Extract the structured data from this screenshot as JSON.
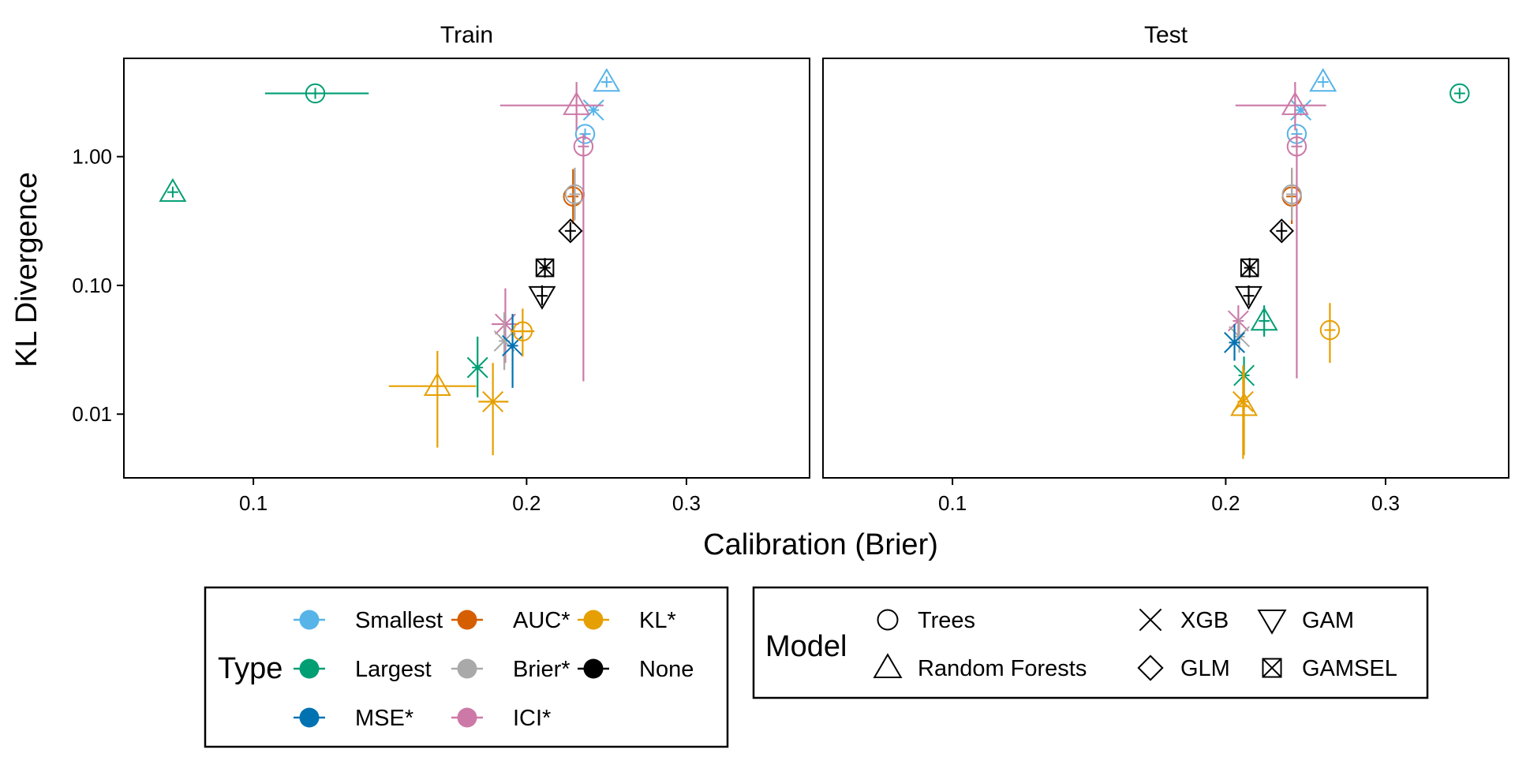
{
  "colors": {
    "Smallest": "#56B4E9",
    "Largest": "#009E73",
    "MSE*": "#0072B2",
    "AUC*": "#D55E00",
    "Brier*": "#A9A9A9",
    "ICI*": "#CC79A7",
    "KL*": "#E69F00",
    "None": "#000000"
  },
  "chart_data": {
    "type": "scatter",
    "xlabel": "Calibration (Brier)",
    "ylabel": "KL Divergence",
    "x_scale": "log",
    "y_scale": "log",
    "xlim": [
      0.072,
      0.41
    ],
    "ylim": [
      0.0032,
      5.8
    ],
    "x_ticks": [
      {
        "value": 0.1,
        "label": "0.1"
      },
      {
        "value": 0.2,
        "label": "0.2"
      },
      {
        "value": 0.3,
        "label": "0.3"
      }
    ],
    "y_ticks": [
      {
        "value": 0.01,
        "label": "0.01"
      },
      {
        "value": 0.1,
        "label": "0.10"
      },
      {
        "value": 1.0,
        "label": "1.00"
      }
    ],
    "grid": false,
    "legend_position": "bottom",
    "panels": [
      {
        "name": "Train",
        "points": [
          {
            "type": "Smallest",
            "model": "Random Forests",
            "x": 0.245,
            "y": 3.8
          },
          {
            "type": "Smallest",
            "model": "XGB",
            "x": 0.237,
            "y": 2.3
          },
          {
            "type": "Smallest",
            "model": "Trees",
            "x": 0.232,
            "y": 1.5
          },
          {
            "type": "Largest",
            "model": "Trees",
            "x": 0.117,
            "y": 3.1,
            "xerr": [
              0.103,
              0.134
            ]
          },
          {
            "type": "Largest",
            "model": "Random Forests",
            "x": 0.0815,
            "y": 0.53
          },
          {
            "type": "Largest",
            "model": "XGB",
            "x": 0.1766,
            "y": 0.023,
            "yerr": [
              0.0135,
              0.04
            ]
          },
          {
            "type": "AUC*",
            "model": "Trees",
            "x": 0.225,
            "y": 0.49,
            "yerr": [
              0.3,
              0.8
            ]
          },
          {
            "type": "Brier*",
            "model": "Trees",
            "x": 0.226,
            "y": 0.51,
            "yerr": [
              0.32,
              0.82
            ]
          },
          {
            "type": "ICI*",
            "model": "Random Forests",
            "x": 0.227,
            "y": 2.5,
            "xerr": [
              0.187,
              0.243
            ],
            "yerr": [
              1.6,
              3.8
            ]
          },
          {
            "type": "ICI*",
            "model": "Trees",
            "x": 0.231,
            "y": 1.2,
            "yerr": [
              0.018,
              1.5
            ]
          },
          {
            "type": "ICI*",
            "model": "XGB",
            "x": 0.1895,
            "y": 0.05,
            "xerr": [
              0.183,
              0.196
            ],
            "yerr": [
              0.025,
              0.095
            ]
          },
          {
            "type": "Brier*",
            "model": "XGB",
            "x": 0.189,
            "y": 0.037,
            "yerr": [
              0.022,
              0.062
            ]
          },
          {
            "type": "MSE*",
            "model": "XGB",
            "x": 0.193,
            "y": 0.034,
            "yerr": [
              0.016,
              0.06
            ]
          },
          {
            "type": "KL*",
            "model": "Trees",
            "x": 0.198,
            "y": 0.044,
            "xerr": [
              0.192,
              0.204
            ],
            "yerr": [
              0.028,
              0.066
            ]
          },
          {
            "type": "KL*",
            "model": "Random Forests",
            "x": 0.1595,
            "y": 0.0165,
            "xerr": [
              0.141,
              0.176
            ],
            "yerr": [
              0.0055,
              0.031
            ]
          },
          {
            "type": "KL*",
            "model": "XGB",
            "x": 0.1836,
            "y": 0.0125,
            "xerr": [
              0.177,
              0.191
            ],
            "yerr": [
              0.0048,
              0.025
            ]
          },
          {
            "type": "None",
            "model": "GLM",
            "x": 0.2235,
            "y": 0.265,
            "yerr": [
              0.225,
              0.31
            ]
          },
          {
            "type": "None",
            "model": "GAMSEL",
            "x": 0.2095,
            "y": 0.137,
            "yerr": [
              0.115,
              0.163
            ]
          },
          {
            "type": "None",
            "model": "GAM",
            "x": 0.208,
            "y": 0.083,
            "yerr": [
              0.07,
              0.1
            ]
          }
        ]
      },
      {
        "name": "Test",
        "points": [
          {
            "type": "Smallest",
            "model": "Random Forests",
            "x": 0.256,
            "y": 3.8
          },
          {
            "type": "Smallest",
            "model": "XGB",
            "x": 0.242,
            "y": 2.3
          },
          {
            "type": "Smallest",
            "model": "Trees",
            "x": 0.2395,
            "y": 1.5
          },
          {
            "type": "Largest",
            "model": "Trees",
            "x": 0.362,
            "y": 3.1
          },
          {
            "type": "Largest",
            "model": "Random Forests",
            "x": 0.2205,
            "y": 0.053,
            "yerr": [
              0.04,
              0.07
            ]
          },
          {
            "type": "Largest",
            "model": "XGB",
            "x": 0.2095,
            "y": 0.02,
            "yerr": [
              0.0145,
              0.028
            ]
          },
          {
            "type": "AUC*",
            "model": "Trees",
            "x": 0.2365,
            "y": 0.49,
            "yerr": [
              0.3,
              0.8
            ]
          },
          {
            "type": "Brier*",
            "model": "Trees",
            "x": 0.2365,
            "y": 0.51,
            "yerr": [
              0.32,
              0.82
            ]
          },
          {
            "type": "ICI*",
            "model": "Random Forests",
            "x": 0.2385,
            "y": 2.5,
            "xerr": [
              0.205,
              0.258
            ],
            "yerr": [
              1.6,
              3.8
            ]
          },
          {
            "type": "ICI*",
            "model": "Trees",
            "x": 0.2395,
            "y": 1.2,
            "yerr": [
              0.019,
              1.5
            ]
          },
          {
            "type": "ICI*",
            "model": "XGB",
            "x": 0.2065,
            "y": 0.053,
            "yerr": [
              0.04,
              0.07
            ]
          },
          {
            "type": "Brier*",
            "model": "XGB",
            "x": 0.207,
            "y": 0.04,
            "yerr": [
              0.03,
              0.055
            ]
          },
          {
            "type": "MSE*",
            "model": "XGB",
            "x": 0.2045,
            "y": 0.036,
            "yerr": [
              0.026,
              0.05
            ]
          },
          {
            "type": "KL*",
            "model": "Trees",
            "x": 0.2605,
            "y": 0.045,
            "yerr": [
              0.025,
              0.073
            ]
          },
          {
            "type": "KL*",
            "model": "Random Forests",
            "x": 0.2095,
            "y": 0.0115,
            "yerr": [
              0.0048,
              0.022
            ]
          },
          {
            "type": "KL*",
            "model": "XGB",
            "x": 0.209,
            "y": 0.0125,
            "yerr": [
              0.0045,
              0.024
            ]
          },
          {
            "type": "None",
            "model": "GLM",
            "x": 0.2305,
            "y": 0.265,
            "yerr": [
              0.225,
              0.31
            ]
          },
          {
            "type": "None",
            "model": "GAMSEL",
            "x": 0.2125,
            "y": 0.137,
            "yerr": [
              0.115,
              0.163
            ]
          },
          {
            "type": "None",
            "model": "GAM",
            "x": 0.212,
            "y": 0.083,
            "yerr": [
              0.07,
              0.1
            ]
          }
        ]
      }
    ],
    "legend_type": {
      "title": "Type",
      "items": [
        "Smallest",
        "Largest",
        "MSE*",
        "AUC*",
        "Brier*",
        "ICI*",
        "KL*",
        "None"
      ]
    },
    "legend_model": {
      "title": "Model",
      "items": [
        {
          "label": "Trees",
          "shape": "circle"
        },
        {
          "label": "Random Forests",
          "shape": "triangle"
        },
        {
          "label": "XGB",
          "shape": "x"
        },
        {
          "label": "GLM",
          "shape": "diamond"
        },
        {
          "label": "GAM",
          "shape": "triangle-down"
        },
        {
          "label": "GAMSEL",
          "shape": "boxed-x"
        }
      ]
    }
  }
}
